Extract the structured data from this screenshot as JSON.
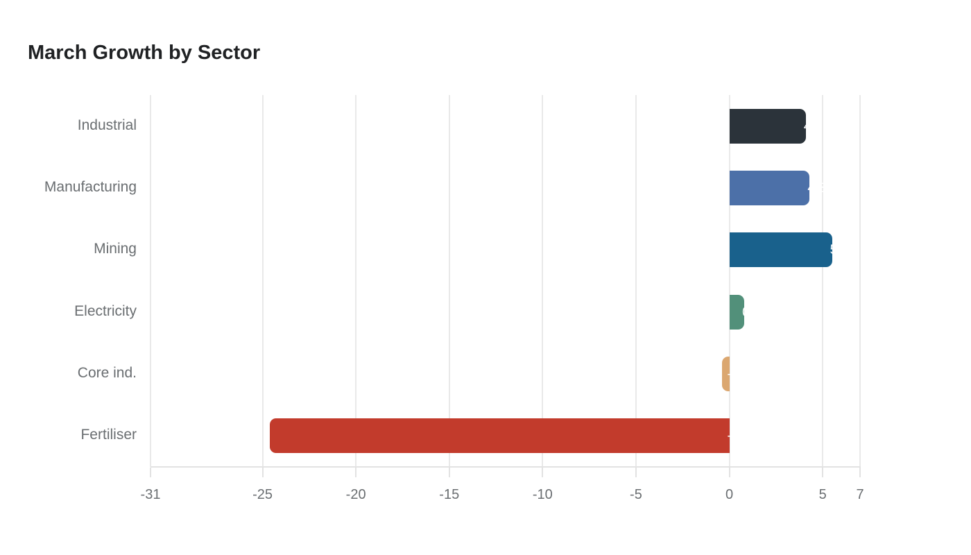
{
  "page": {
    "background_color": "#ffffff"
  },
  "chart_data": {
    "type": "bar",
    "orientation": "horizontal",
    "title": "March Growth by Sector",
    "xlabel": "",
    "ylabel": "",
    "categories": [
      "Industrial",
      "Manufacturing",
      "Mining",
      "Electricity",
      "Core ind.",
      "Fertiliser"
    ],
    "values": [
      4.1,
      4.3,
      5.5,
      0.8,
      -0.4,
      -24.6
    ],
    "bar_labels": [
      "4.1",
      "4.3",
      "5.5",
      "0.8",
      "-0.4",
      "-24.6"
    ],
    "bar_colors": [
      "#2b333a",
      "#4c70a8",
      "#19618c",
      "#52907a",
      "#dba770",
      "#c23b2c"
    ],
    "value_label_color": "#ffffff",
    "xlim": [
      -31,
      7
    ],
    "xticks": [
      -31,
      -25,
      -20,
      -15,
      -10,
      -5,
      0,
      5,
      7
    ],
    "xtick_labels": [
      "-31",
      "-25",
      "-20",
      "-15",
      "-10",
      "-5",
      "0",
      "5",
      "7"
    ],
    "grid": "vertical",
    "legend": "none",
    "title_color": "#202224",
    "axis_text_color": "#6a6e71",
    "gridline_color": "#e9e9e9",
    "spine_color": "#d8d8d8"
  }
}
